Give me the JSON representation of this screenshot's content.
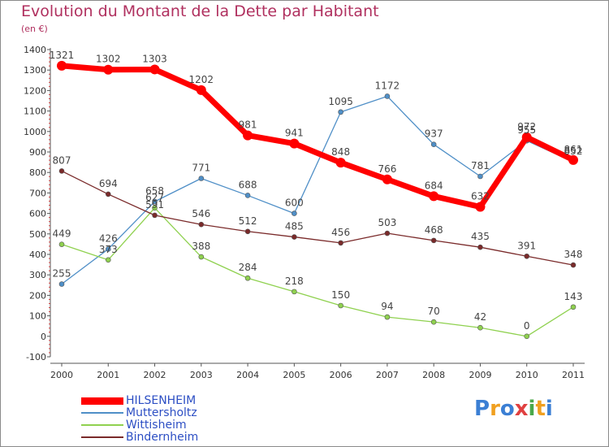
{
  "title": "Evolution du Montant de la Dette par Habitant",
  "subtitle": "(en €)",
  "logo": {
    "text": "Proxiti",
    "letters": [
      {
        "ch": "P",
        "color": "#3b7fd4"
      },
      {
        "ch": "r",
        "color": "#f0a020"
      },
      {
        "ch": "o",
        "color": "#3b7fd4"
      },
      {
        "ch": "x",
        "color": "#e04040"
      },
      {
        "ch": "i",
        "color": "#4aa84a"
      },
      {
        "ch": "t",
        "color": "#f0a020"
      },
      {
        "ch": "i",
        "color": "#3b7fd4"
      }
    ]
  },
  "chart_data": {
    "type": "line",
    "title": "Evolution du Montant de la Dette par Habitant",
    "subtitle": "(en €)",
    "x": [
      "2000",
      "2001",
      "2002",
      "2003",
      "2004",
      "2005",
      "2006",
      "2007",
      "2008",
      "2009",
      "2010",
      "2011"
    ],
    "ylim": [
      -100,
      1400
    ],
    "yticks": [
      -100,
      0,
      100,
      200,
      300,
      400,
      500,
      600,
      700,
      800,
      900,
      1000,
      1100,
      1200,
      1300,
      1400
    ],
    "grid": false,
    "legend_position": "bottom-left",
    "series": [
      {
        "name": "HILSENHEIM",
        "color": "#ff0000",
        "values": [
          1321,
          1302,
          1303,
          1202,
          981,
          941,
          848,
          766,
          684,
          632,
          972,
          861
        ]
      },
      {
        "name": "Muttersholtz",
        "color": "#4f8fc7",
        "values": [
          255,
          426,
          658,
          771,
          688,
          600,
          1095,
          1172,
          937,
          781,
          955,
          852
        ]
      },
      {
        "name": "Wittisheim",
        "color": "#8fd14f",
        "values": [
          449,
          373,
          627,
          388,
          284,
          218,
          150,
          94,
          70,
          42,
          0,
          143
        ]
      },
      {
        "name": "Bindernheim",
        "color": "#7a2a2a",
        "values": [
          807,
          694,
          591,
          546,
          512,
          485,
          456,
          503,
          468,
          435,
          391,
          348
        ]
      }
    ]
  }
}
